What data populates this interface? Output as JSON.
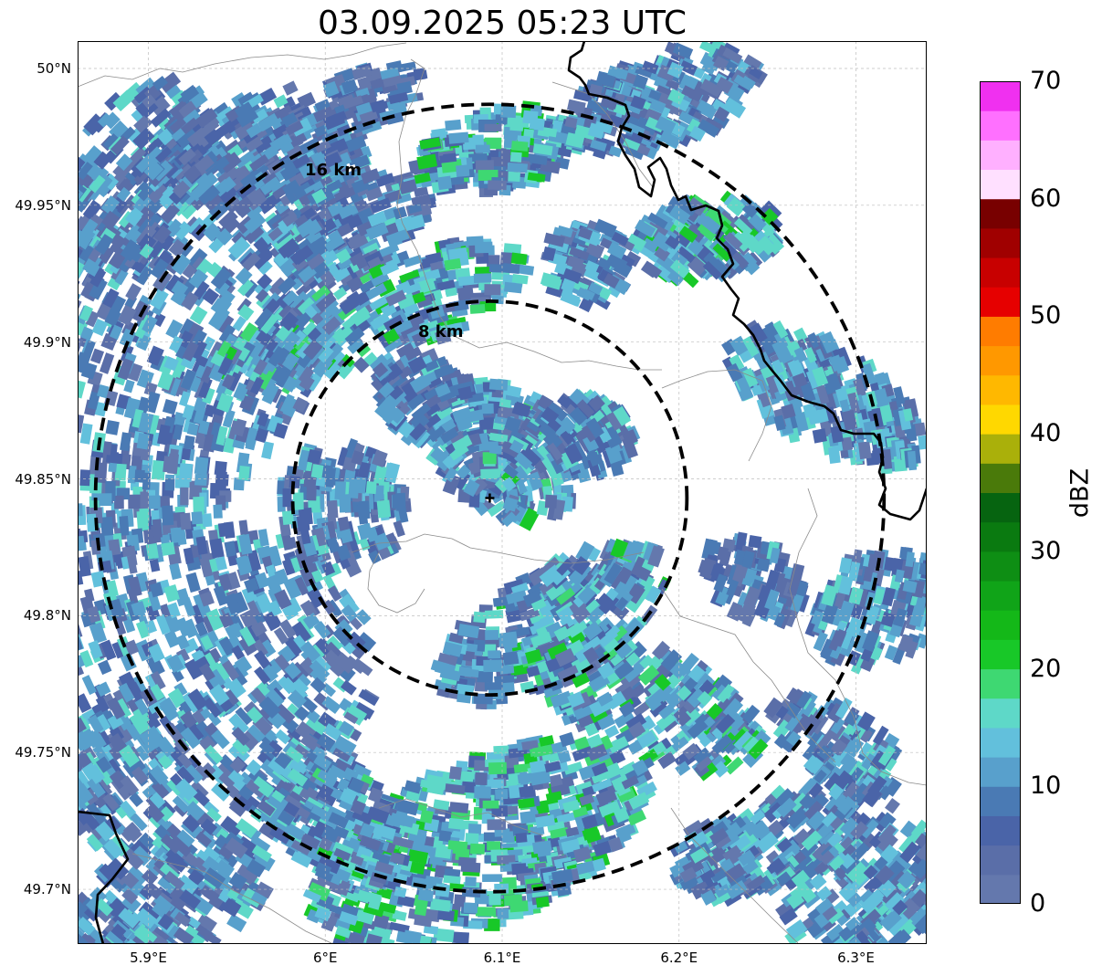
{
  "title": "03.09.2025 05:23 UTC",
  "map": {
    "lon_range": [
      5.86,
      6.34
    ],
    "lat_range": [
      49.68,
      50.01
    ],
    "x_ticks": [
      "5.9°E",
      "6°E",
      "6.1°E",
      "6.2°E",
      "6.3°E"
    ],
    "y_ticks": [
      "50°N",
      "49.95°N",
      "49.9°N",
      "49.85°N",
      "49.8°N",
      "49.75°N",
      "49.7°N"
    ],
    "radar_site": {
      "lon": 6.093,
      "lat": 49.843
    },
    "range_rings": [
      {
        "label": "8 km",
        "radius_km": 8
      },
      {
        "label": "16 km",
        "radius_km": 16
      }
    ],
    "gridlines": true
  },
  "colorbar": {
    "label": "dBZ",
    "ticks": [
      "0",
      "10",
      "20",
      "30",
      "40",
      "50",
      "60",
      "70"
    ],
    "min": 0,
    "max": 70,
    "colors": [
      "#6478ad",
      "#5a6ea8",
      "#4a64a8",
      "#4a7ab4",
      "#58a0cc",
      "#62c0dc",
      "#5ed8c8",
      "#3ed872",
      "#18c828",
      "#14b818",
      "#10a418",
      "#0e8e14",
      "#0a7a10",
      "#066410",
      "#4a7a0a",
      "#aab00a",
      "#ffd800",
      "#ffb800",
      "#ff9800",
      "#ff7c00",
      "#e60000",
      "#c80000",
      "#a00000",
      "#780000",
      "#ffe0ff",
      "#ffb0ff",
      "#ff70ff",
      "#f030f0"
    ]
  },
  "palette": {
    "background": "#ffffff",
    "ring": "#000000",
    "country_border": "#000000",
    "admin_border": "#8a8a8a",
    "grid": "#bdbdbd"
  }
}
